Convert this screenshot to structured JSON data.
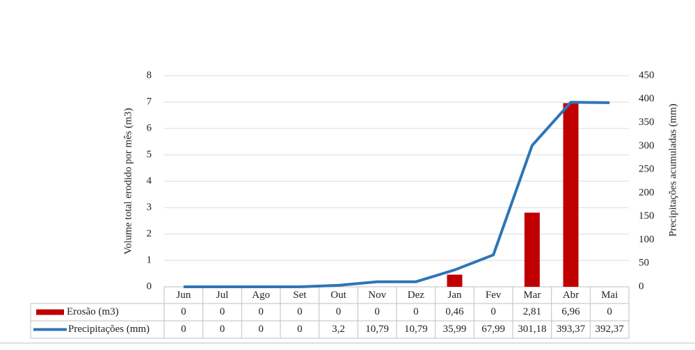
{
  "chart_data": {
    "type": "bar",
    "y_label": "Volume total erodido por mês (m3)",
    "y2_label": "Precipitações acumuladas (mm)",
    "categories": [
      "Jun",
      "Jul",
      "Ago",
      "Set",
      "Out",
      "Nov",
      "Dez",
      "Jan",
      "Fev",
      "Mar",
      "Abr",
      "Mai"
    ],
    "series": [
      {
        "name": "Erosão (m3)",
        "type": "bar",
        "color": "#c00000",
        "values": [
          0,
          0,
          0,
          0,
          0,
          0,
          0,
          0.46,
          0,
          2.81,
          6.96,
          0
        ],
        "value_labels": [
          "0",
          "0",
          "0",
          "0",
          "0",
          "0",
          "0",
          "0,46",
          "0",
          "2,81",
          "6,96",
          "0"
        ]
      },
      {
        "name": "Precipitações (mm)",
        "type": "line",
        "axis": "y2",
        "color": "#2e75b6",
        "values": [
          0,
          0,
          0,
          0,
          3.2,
          10.79,
          10.79,
          35.99,
          67.99,
          301.18,
          393.37,
          392.37
        ],
        "value_labels": [
          "0",
          "0",
          "0",
          "0",
          "3,2",
          "10,79",
          "10,79",
          "35,99",
          "67,99",
          "301,18",
          "393,37",
          "392,37"
        ]
      }
    ],
    "ylim": [
      0,
      8
    ],
    "yticks": [
      0,
      1,
      2,
      3,
      4,
      5,
      6,
      7,
      8
    ],
    "y2lim": [
      0,
      450
    ],
    "y2ticks": [
      0,
      50,
      100,
      150,
      200,
      250,
      300,
      350,
      400,
      450
    ],
    "grid": true
  }
}
